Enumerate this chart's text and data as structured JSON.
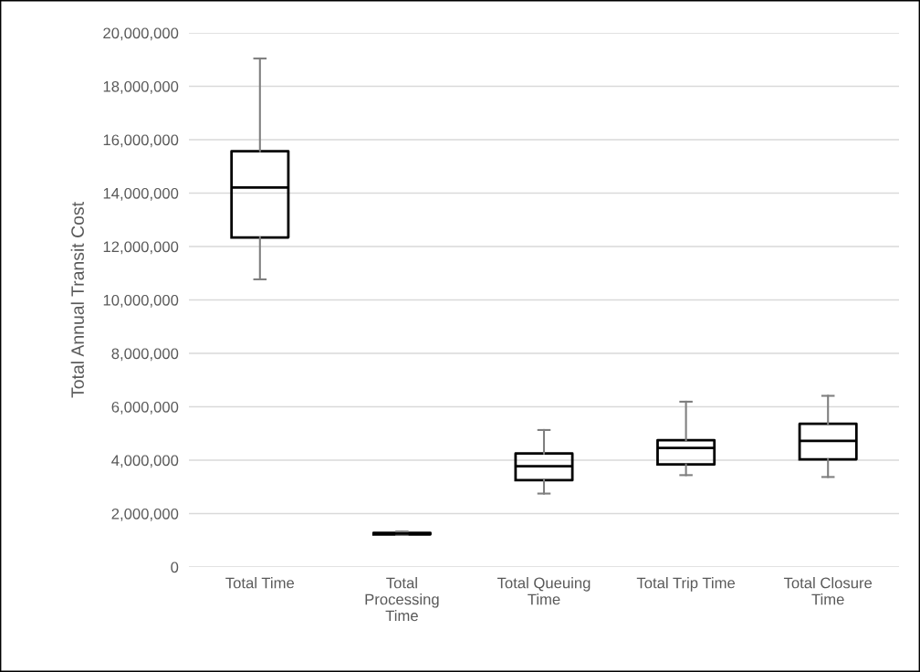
{
  "chart_data": {
    "type": "box",
    "ylabel": "Total Annual Transit Cost",
    "categories": [
      "Total Time",
      "Total\nProcessing\nTime",
      "Total Queuing\nTime",
      "Total Trip Time",
      "Total Closure\nTime"
    ],
    "boxes": [
      {
        "low": 10770000,
        "q1": 12340000,
        "median": 14210000,
        "q3": 15570000,
        "high": 19040000
      },
      {
        "low": 1200000,
        "q1": 1220000,
        "median": 1250000,
        "q3": 1280000,
        "high": 1330000
      },
      {
        "low": 2750000,
        "q1": 3250000,
        "median": 3770000,
        "q3": 4250000,
        "high": 5130000
      },
      {
        "low": 3440000,
        "q1": 3840000,
        "median": 4460000,
        "q3": 4750000,
        "high": 6190000
      },
      {
        "low": 3370000,
        "q1": 4030000,
        "median": 4720000,
        "q3": 5360000,
        "high": 6410000
      }
    ],
    "color": "#000000",
    "ylim": [
      0,
      20000000
    ],
    "yticks": [
      {
        "value": 0,
        "label": "0"
      },
      {
        "value": 2000000,
        "label": "2,000,000"
      },
      {
        "value": 4000000,
        "label": "4,000,000"
      },
      {
        "value": 6000000,
        "label": "6,000,000"
      },
      {
        "value": 8000000,
        "label": "8,000,000"
      },
      {
        "value": 10000000,
        "label": "10,000,000"
      },
      {
        "value": 12000000,
        "label": "12,000,000"
      },
      {
        "value": 14000000,
        "label": "14,000,000"
      },
      {
        "value": 16000000,
        "label": "16,000,000"
      },
      {
        "value": 18000000,
        "label": "18,000,000"
      },
      {
        "value": 20000000,
        "label": "20,000,000"
      }
    ],
    "grid": "y",
    "legend": false
  }
}
